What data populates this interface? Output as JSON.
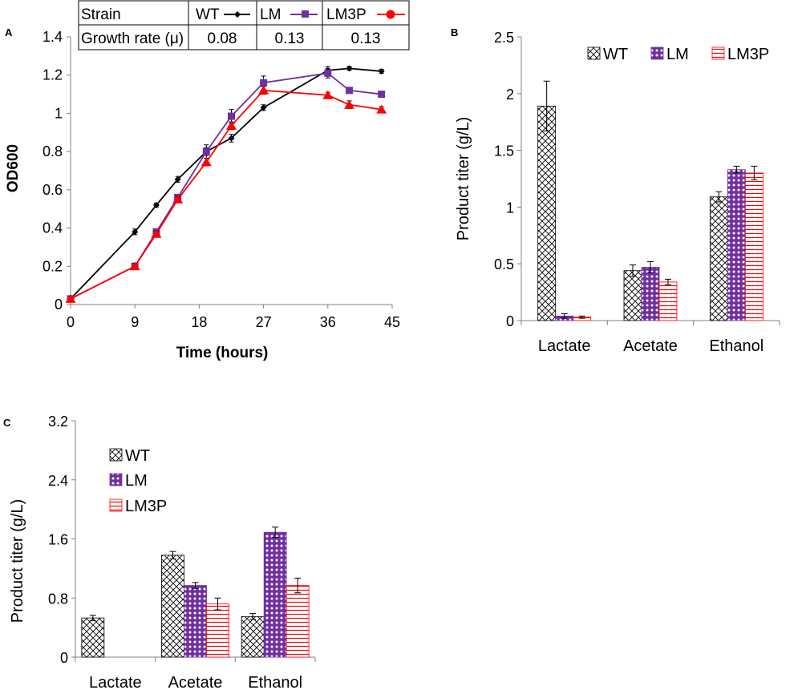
{
  "colors": {
    "wt": "#000000",
    "lm": "#7030A0",
    "lm3p": "#FF0000",
    "axis": "#808080"
  },
  "chart_data": [
    {
      "panel": "A",
      "type": "line",
      "xlabel": "Time (hours)",
      "ylabel": "OD600",
      "xlim": [
        0,
        45
      ],
      "ylim": [
        0,
        1.4
      ],
      "xticks": [
        "0",
        "9",
        "18",
        "27",
        "36",
        "45"
      ],
      "yticks": [
        "0",
        "0.2",
        "0.4",
        "0.6",
        "0.8",
        "1",
        "1.2",
        "1.4"
      ],
      "series": [
        {
          "name": "WT",
          "marker": "diamond",
          "x": [
            0,
            9,
            12,
            15,
            19,
            22.5,
            27,
            36,
            39,
            43.5
          ],
          "y": [
            0.03,
            0.38,
            0.52,
            0.655,
            0.8,
            0.87,
            1.03,
            1.225,
            1.235,
            1.22
          ],
          "err": [
            0,
            0.015,
            0.01,
            0.015,
            0.02,
            0.02,
            0.015,
            0.02,
            0.01,
            0.01
          ]
        },
        {
          "name": "LM",
          "marker": "square",
          "x": [
            0,
            9,
            12,
            15,
            19,
            22.5,
            27,
            36,
            39,
            43.5
          ],
          "y": [
            0.03,
            0.2,
            0.38,
            0.56,
            0.8,
            0.985,
            1.16,
            1.21,
            1.12,
            1.1
          ],
          "err": [
            0,
            0.015,
            0.015,
            0.015,
            0.035,
            0.035,
            0.035,
            0.025,
            0.015,
            0.015
          ]
        },
        {
          "name": "LM3P",
          "marker": "triangle",
          "x": [
            0,
            9,
            12,
            15,
            19,
            22.5,
            27,
            36,
            39,
            43.5
          ],
          "y": [
            0.03,
            0.2,
            0.37,
            0.55,
            0.745,
            0.935,
            1.12,
            1.095,
            1.045,
            1.02
          ],
          "err": [
            0,
            0.015,
            0.015,
            0.015,
            0.02,
            0.02,
            0.02,
            0.015,
            0.02,
            0.015
          ]
        }
      ],
      "table": {
        "header": [
          "Strain",
          "WT",
          "LM",
          "LM3P"
        ],
        "row_label": "Growth rate (μ)",
        "values": [
          "0.08",
          "0.13",
          "0.13"
        ]
      }
    },
    {
      "panel": "B",
      "type": "bar",
      "ylabel": "Product titer (g/L)",
      "ylim": [
        0,
        2.5
      ],
      "yticks": [
        "0",
        "0.5",
        "1",
        "1.5",
        "2",
        "2.5"
      ],
      "categories": [
        "Lactate",
        "Acetate",
        "Ethanol"
      ],
      "legend_position": "top",
      "series": [
        {
          "name": "WT",
          "pattern": "crosshatch",
          "values": [
            1.89,
            0.44,
            1.09
          ],
          "err": [
            0.22,
            0.05,
            0.045
          ]
        },
        {
          "name": "LM",
          "pattern": "dots",
          "values": [
            0.04,
            0.47,
            1.33
          ],
          "err": [
            0.02,
            0.05,
            0.03
          ]
        },
        {
          "name": "LM3P",
          "pattern": "stripes",
          "values": [
            0.03,
            0.34,
            1.3
          ],
          "err": [
            0.01,
            0.025,
            0.06
          ]
        }
      ]
    },
    {
      "panel": "C",
      "type": "bar",
      "ylabel": "Product titer (g/L)",
      "ylim": [
        0,
        3.2
      ],
      "yticks": [
        "0",
        "0.8",
        "1.6",
        "2.4",
        "3.2"
      ],
      "categories": [
        "Lactate",
        "Acetate",
        "Ethanol"
      ],
      "legend_position": "top-left",
      "series": [
        {
          "name": "WT",
          "pattern": "crosshatch",
          "values": [
            0.53,
            1.38,
            0.55
          ],
          "err": [
            0.035,
            0.05,
            0.04
          ]
        },
        {
          "name": "LM",
          "pattern": "dots",
          "values": [
            0,
            0.97,
            1.69
          ],
          "err": [
            0,
            0.04,
            0.07
          ]
        },
        {
          "name": "LM3P",
          "pattern": "stripes",
          "values": [
            0,
            0.72,
            0.97
          ],
          "err": [
            0,
            0.08,
            0.1
          ]
        }
      ]
    }
  ]
}
